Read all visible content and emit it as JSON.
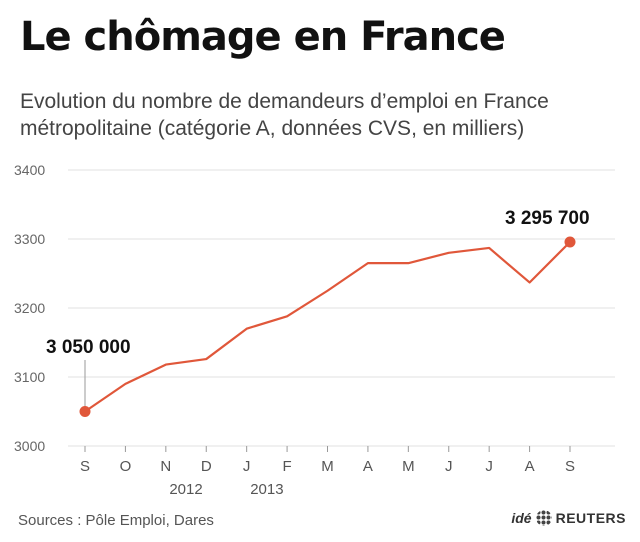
{
  "header": {
    "title": "Le chômage en France",
    "subtitle": "Evolution du nombre de demandeurs d’emploi en France métropolitaine (catégorie A, données CVS, en milliers)"
  },
  "footer": {
    "source": "Sources : Pôle Emploi, Dares",
    "brand_ide": "idé",
    "brand_reuters": "REUTERS"
  },
  "chart_data": {
    "type": "line",
    "title": "Le chômage en France",
    "subtitle": "Evolution du nombre de demandeurs d’emploi en France métropolitaine (catégorie A, données CVS, en milliers)",
    "categories": [
      "S",
      "O",
      "N",
      "D",
      "J",
      "F",
      "M",
      "A",
      "M",
      "J",
      "J",
      "A",
      "S"
    ],
    "year_labels": [
      {
        "text": "2012",
        "category_index": 2.5
      },
      {
        "text": "2013",
        "category_index": 4.5
      }
    ],
    "series": [
      {
        "values": [
          3050,
          3090,
          3118,
          3126,
          3170,
          3188,
          3225,
          3265,
          3265,
          3280,
          3287,
          3237,
          3295.7
        ],
        "color": "#e0573a"
      }
    ],
    "ylim": [
      3000,
      3400
    ],
    "yticks": [
      3000,
      3100,
      3200,
      3300,
      3400
    ],
    "grid": true,
    "annotations": [
      {
        "text": "3 050 000",
        "category_index": 0
      },
      {
        "text": "3 295 700",
        "category_index": 12
      }
    ],
    "line_color": "#e0573a",
    "grid_color": "#e2e2e2"
  }
}
